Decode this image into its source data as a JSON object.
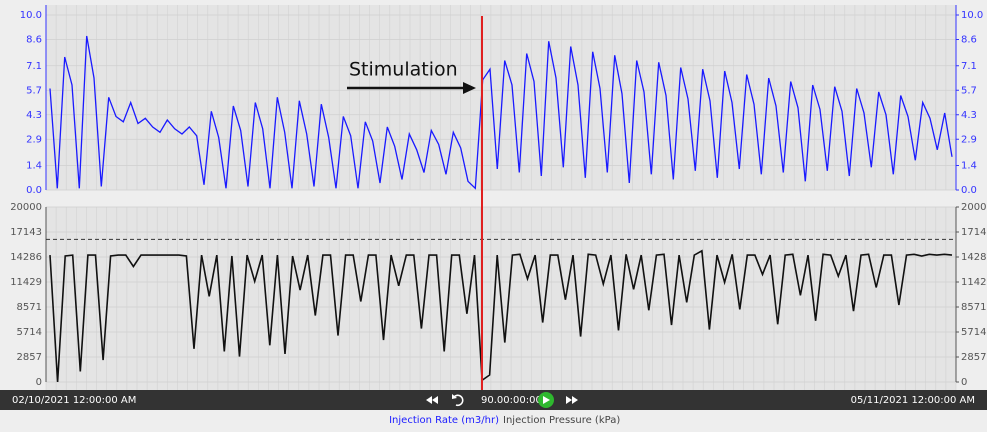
{
  "chart_data": [
    {
      "type": "line",
      "series": [
        {
          "name": "Injection Rate (m3/hr)",
          "color": "#1a1aff",
          "values": [
            5.8,
            0.1,
            7.6,
            6.0,
            0.1,
            8.8,
            6.4,
            0.2,
            5.3,
            4.2,
            3.9,
            5.0,
            3.8,
            4.1,
            3.6,
            3.3,
            4.0,
            3.5,
            3.2,
            3.6,
            3.1,
            0.3,
            4.5,
            3.0,
            0.1,
            4.8,
            3.4,
            0.2,
            5.0,
            3.5,
            0.1,
            5.3,
            3.3,
            0.1,
            5.1,
            3.2,
            0.2,
            4.9,
            3.0,
            0.1,
            4.2,
            3.1,
            0.1,
            3.9,
            2.8,
            0.4,
            3.6,
            2.5,
            0.6,
            3.2,
            2.3,
            1.0,
            3.4,
            2.6,
            0.9,
            3.3,
            2.4,
            0.5,
            0.1,
            6.3,
            6.9,
            1.2,
            7.4,
            6.0,
            1.0,
            7.8,
            6.2,
            0.8,
            8.5,
            6.4,
            1.3,
            8.2,
            6.0,
            0.7,
            7.9,
            5.8,
            1.0,
            7.7,
            5.5,
            0.4,
            7.4,
            5.6,
            0.9,
            7.3,
            5.4,
            0.6,
            7.0,
            5.2,
            1.1,
            6.9,
            5.1,
            0.7,
            6.8,
            5.0,
            1.2,
            6.6,
            4.9,
            0.9,
            6.4,
            4.8,
            1.0,
            6.2,
            4.7,
            0.5,
            6.0,
            4.6,
            1.1,
            5.9,
            4.5,
            0.8,
            5.8,
            4.4,
            1.3,
            5.6,
            4.3,
            0.9,
            5.4,
            4.2,
            1.7,
            5.0,
            4.1,
            2.3,
            4.4,
            1.9
          ]
        }
      ],
      "ylim": [
        0,
        10
      ],
      "yticks": [
        {
          "value": 0,
          "label": "0.0"
        },
        1.4,
        2.9,
        4.3,
        5.7,
        7.1,
        8.6,
        {
          "value": 10,
          "label": "10.0"
        }
      ],
      "y2lim": [
        0,
        10
      ],
      "y2ticks": [
        {
          "value": 0,
          "label": "0.0"
        },
        1.4,
        2.9,
        4.3,
        5.7,
        7.1,
        8.6,
        {
          "value": 10,
          "label": "10.0"
        }
      ],
      "annotation": "Stimulation",
      "grid": true
    },
    {
      "type": "line",
      "series": [
        {
          "name": "Injection Pressure (kPa)",
          "color": "#111111",
          "values": [
            14500,
            0,
            14400,
            14500,
            1200,
            14500,
            14500,
            2500,
            14400,
            14500,
            14500,
            13200,
            14500,
            14500,
            14500,
            14500,
            14500,
            14500,
            14400,
            3800,
            14500,
            9800,
            14500,
            3500,
            14400,
            2900,
            14500,
            11500,
            14500,
            4200,
            14500,
            3200,
            14400,
            10500,
            14500,
            7600,
            14500,
            14500,
            5300,
            14500,
            14500,
            9200,
            14500,
            14500,
            4800,
            14500,
            11000,
            14500,
            14500,
            6100,
            14500,
            14500,
            3500,
            14500,
            14500,
            7800,
            14500,
            200,
            800,
            14500,
            4500,
            14500,
            14600,
            11800,
            14500,
            6800,
            14500,
            14500,
            9400,
            14500,
            5200,
            14600,
            14500,
            11200,
            14500,
            5900,
            14600,
            10600,
            14500,
            8200,
            14500,
            14600,
            6500,
            14500,
            9100,
            14500,
            15000,
            6000,
            14500,
            11400,
            14600,
            8300,
            14500,
            14500,
            12300,
            14500,
            6600,
            14500,
            14600,
            9900,
            14500,
            7000,
            14600,
            14500,
            12100,
            14500,
            8100,
            14500,
            14600,
            10800,
            14500,
            14500,
            8800,
            14500,
            14600,
            14400,
            14600,
            14500,
            14600,
            14500
          ]
        }
      ],
      "ylim": [
        0,
        20000
      ],
      "yticks": [
        0,
        2857,
        5714,
        8571,
        11429,
        14286,
        17143,
        20000
      ],
      "y2lim": [
        0,
        20000
      ],
      "y2ticks": [
        0,
        2857,
        5714,
        8571,
        11429,
        14286,
        17143,
        20000
      ],
      "reference_line": 16300,
      "grid": true
    }
  ],
  "toolbar": {
    "start": "02/10/2021 12:00:00 AM",
    "duration": "90.00:00:00",
    "end": "05/11/2021 12:00:00 AM"
  }
}
